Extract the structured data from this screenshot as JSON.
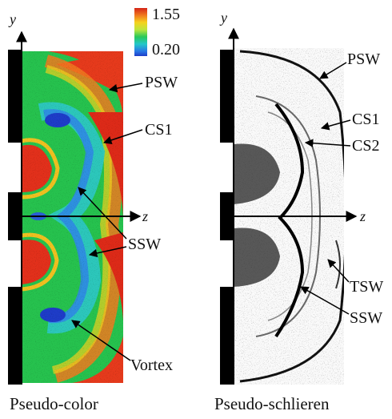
{
  "colorbar": {
    "max_label": "1.55",
    "min_label": "0.20",
    "colors": [
      "#d42418",
      "#f0781e",
      "#f5d21e",
      "#bde63c",
      "#28c85a",
      "#23c8c8",
      "#2878e6",
      "#1e3cc8"
    ]
  },
  "axes": {
    "y_label": "y",
    "z_label": "z"
  },
  "left_panel": {
    "caption": "Pseudo-color",
    "labels": {
      "psw": "PSW",
      "cs1": "CS1",
      "ssw": "SSW",
      "vortex": "Vortex"
    }
  },
  "right_panel": {
    "caption": "Pseudo-schlieren",
    "labels": {
      "psw": "PSW",
      "cs1": "CS1",
      "cs2": "CS2",
      "tsw": "TSW",
      "ssw": "SSW"
    }
  }
}
